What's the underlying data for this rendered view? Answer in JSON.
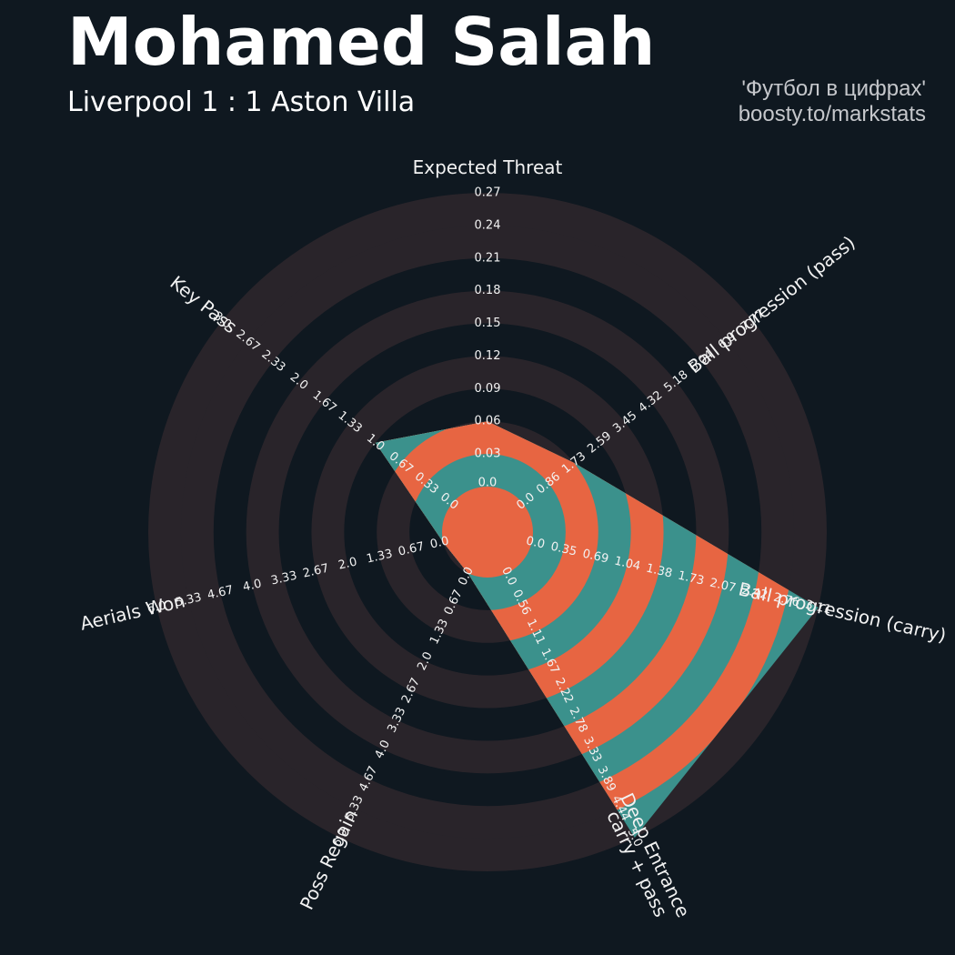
{
  "header": {
    "title": "Mohamed Salah",
    "subtitle": "Liverpool 1 : 1 Aston Villa",
    "credit_line1": "'Футбол в цифрах'",
    "credit_line2": "boosty.to/markstats"
  },
  "colors": {
    "background": "#0f1820",
    "ring_band": "#29242a",
    "slice_fill": "#3b918c",
    "slice_ring": "#e76542",
    "text": "#ffffff"
  },
  "chart_data": {
    "type": "radar",
    "params": [
      {
        "name": "Expected Threat",
        "value": 0.06,
        "max": 0.27,
        "ticks": [
          "0.0",
          "0.03",
          "0.06",
          "0.09",
          "0.12",
          "0.15",
          "0.18",
          "0.21",
          "0.24",
          "0.27"
        ]
      },
      {
        "name": "Ball progression (pass)",
        "value": 1.73,
        "max": 7.77,
        "ticks": [
          "0.0",
          "0.86",
          "1.73",
          "2.59",
          "3.45",
          "4.32",
          "5.18",
          "6.04",
          "6.9",
          "7.77"
        ]
      },
      {
        "name": "Ball progression (carry)",
        "value": 3.11,
        "max": 3.11,
        "ticks": [
          "0.0",
          "0.35",
          "0.69",
          "1.04",
          "1.38",
          "1.73",
          "2.07",
          "2.42",
          "2.76",
          "3.11"
        ]
      },
      {
        "name": "Deep Entrance\ncarry + pass",
        "value": 5.0,
        "max": 5.0,
        "ticks": [
          "0.0",
          "0.56",
          "1.11",
          "1.67",
          "2.22",
          "2.78",
          "3.33",
          "3.89",
          "4.44",
          "5.0"
        ]
      },
      {
        "name": "Poss Regain",
        "value": 0.0,
        "max": 6.0,
        "ticks": [
          "0.0",
          "0.67",
          "1.33",
          "2.0",
          "2.67",
          "3.33",
          "4.0",
          "4.67",
          "5.33",
          "6.0"
        ]
      },
      {
        "name": "Aerials Won",
        "value": 0.0,
        "max": 6.0,
        "ticks": [
          "0.0",
          "0.67",
          "1.33",
          "2.0",
          "2.67",
          "3.33",
          "4.0",
          "4.67",
          "5.33",
          "6.0"
        ]
      },
      {
        "name": "Key Pass",
        "value": 1.0,
        "max": 3.0,
        "ticks": [
          "0.0",
          "0.33",
          "0.67",
          "1.0",
          "1.33",
          "1.67",
          "2.0",
          "2.33",
          "2.67",
          "3.0"
        ]
      }
    ]
  }
}
